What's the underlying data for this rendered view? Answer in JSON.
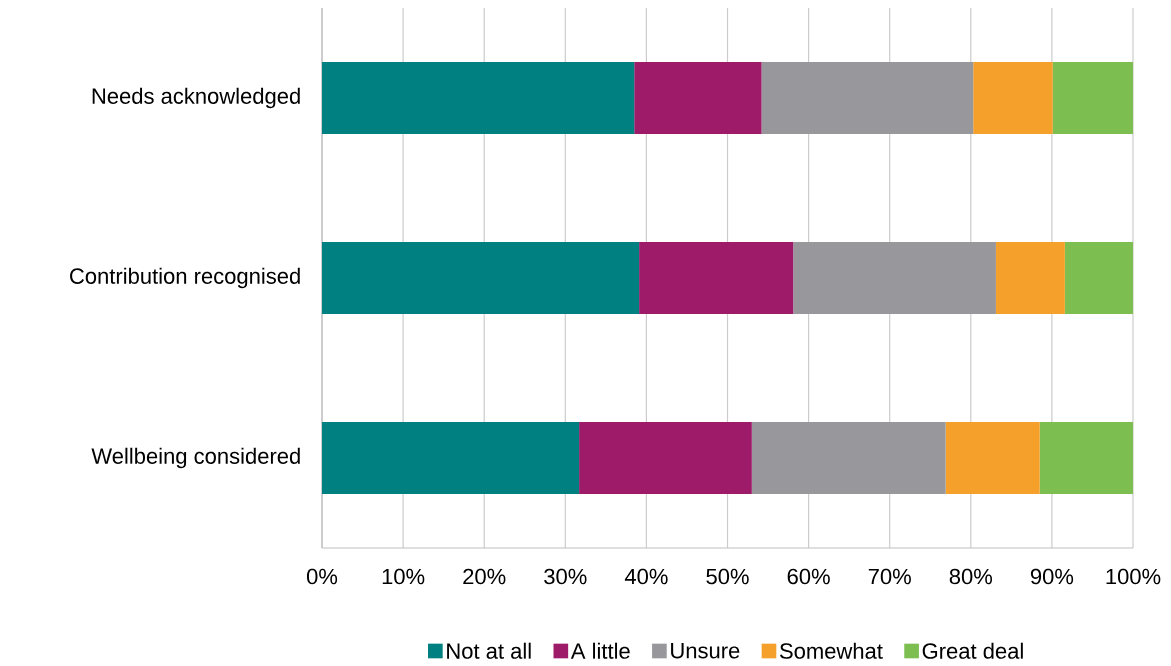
{
  "chart_data": {
    "type": "bar",
    "orientation": "horizontal",
    "stacked": true,
    "categories": [
      "Needs acknowledged",
      "Contribution recognised",
      "Wellbeing considered"
    ],
    "series": [
      {
        "name": "Not at all",
        "color": "#008080",
        "values": [
          38.5,
          39.1,
          31.7
        ]
      },
      {
        "name": "A little",
        "color": "#9e1b6a",
        "values": [
          15.7,
          19.0,
          21.3
        ]
      },
      {
        "name": "Unsure",
        "color": "#98989c",
        "values": [
          26.1,
          25.0,
          23.9
        ]
      },
      {
        "name": "Somewhat",
        "color": "#f4a02a",
        "values": [
          9.8,
          8.5,
          11.6
        ]
      },
      {
        "name": "Great deal",
        "color": "#7dbe50",
        "values": [
          9.9,
          8.4,
          11.5
        ]
      }
    ],
    "xlim": [
      0,
      100
    ],
    "xticks": [
      {
        "value": 0,
        "label": "0%"
      },
      {
        "value": 10,
        "label": "10%"
      },
      {
        "value": 20,
        "label": "20%"
      },
      {
        "value": 30,
        "label": "30%"
      },
      {
        "value": 40,
        "label": "40%"
      },
      {
        "value": 50,
        "label": "50%"
      },
      {
        "value": 60,
        "label": "60%"
      },
      {
        "value": 70,
        "label": "70%"
      },
      {
        "value": 80,
        "label": "80%"
      },
      {
        "value": 90,
        "label": "90%"
      },
      {
        "value": 100,
        "label": "100%"
      }
    ],
    "grid": "x",
    "legend": "bottom"
  }
}
